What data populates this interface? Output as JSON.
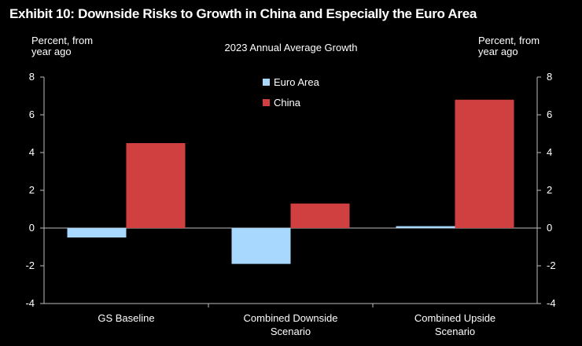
{
  "header": {
    "title": "Exhibit 10: Downside Risks to Growth in China and Especially the Euro Area",
    "left_unit_line1": "Percent, from",
    "left_unit_line2": "year ago",
    "right_unit_line1": "Percent, from",
    "right_unit_line2": "year ago"
  },
  "chart_data": {
    "type": "bar",
    "title": "2023 Annual Average Growth",
    "categories": [
      [
        "GS Baseline"
      ],
      [
        "Combined Downside",
        "Scenario"
      ],
      [
        "Combined Upside",
        "Scenario"
      ]
    ],
    "series": [
      {
        "name": "Euro Area",
        "color": "#a9d8ff",
        "values": [
          -0.5,
          -1.9,
          0.1
        ]
      },
      {
        "name": "China",
        "color": "#d04040",
        "values": [
          4.5,
          1.3,
          6.8
        ]
      }
    ],
    "ylim": [
      -4,
      8
    ],
    "yticks": [
      -4,
      -2,
      0,
      2,
      4,
      6,
      8
    ],
    "ylabel_left": "Percent, from year ago",
    "ylabel_right": "Percent, from year ago",
    "legend_position": "top-center",
    "grid": false
  }
}
